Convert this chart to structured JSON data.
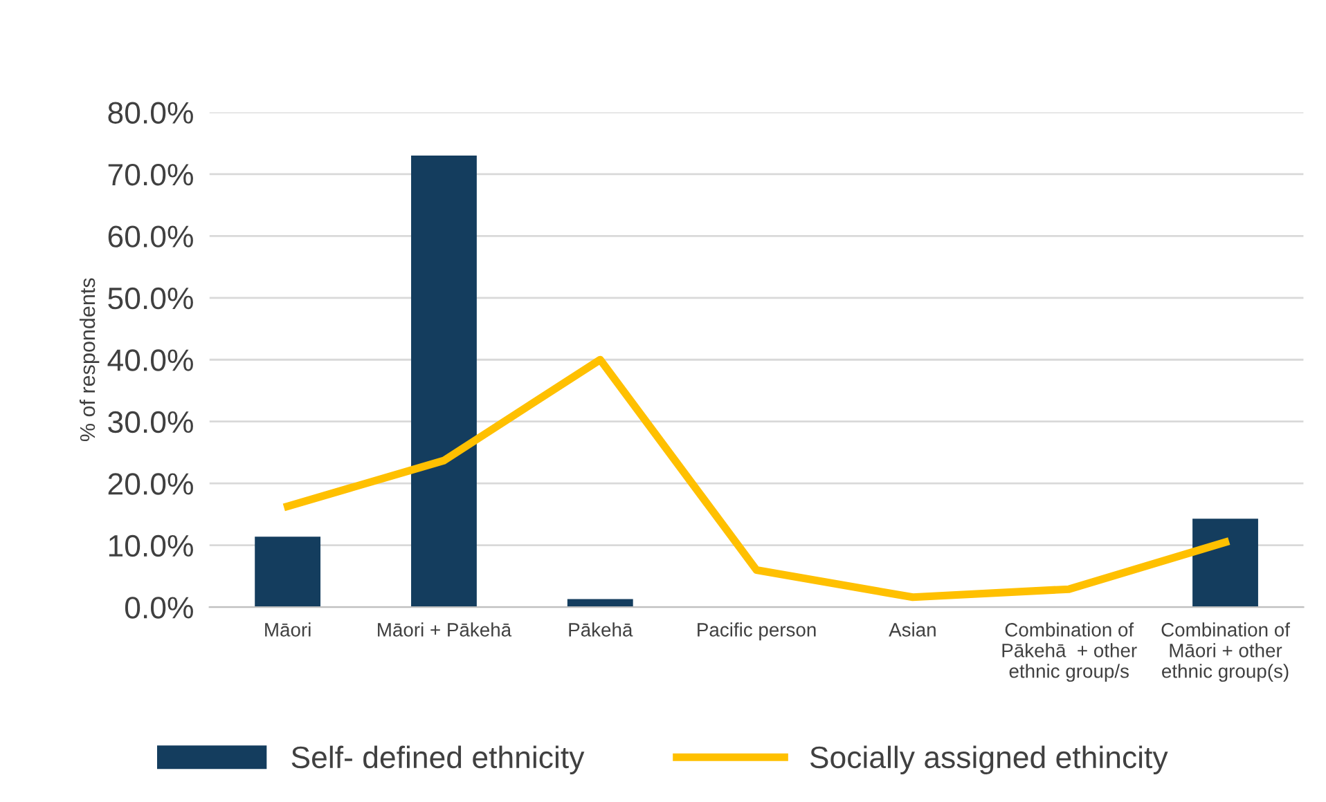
{
  "chart_data": {
    "type": "bar",
    "ylabel": "% of respondents",
    "categories": [
      "Māori",
      "Māori + Pākehā",
      "Pākehā",
      "Pacific person",
      "Asian",
      "Combination of\nPākehā  + other\nethnic group/s",
      "Combination of\nMāori + other\nethnic group(s)"
    ],
    "series": [
      {
        "name": "Self- defined ethnicity",
        "color": "#143d5e",
        "values": [
          11.4,
          73.0,
          1.3,
          0,
          0,
          0,
          14.3
        ]
      },
      {
        "name": "Socially assigned ethincity",
        "type": "line",
        "color": "#ffc000",
        "values": [
          16.3,
          23.7,
          40.0,
          6.0,
          1.6,
          2.9,
          10.5
        ]
      }
    ],
    "ylim": [
      0,
      80
    ],
    "yticks": [
      {
        "value": 0,
        "label": "0.0%"
      },
      {
        "value": 10,
        "label": "10.0%"
      },
      {
        "value": 20,
        "label": "20.0%"
      },
      {
        "value": 30,
        "label": "30.0%"
      },
      {
        "value": 40,
        "label": "40.0%"
      },
      {
        "value": 50,
        "label": "50.0%"
      },
      {
        "value": 60,
        "label": "60.0%"
      },
      {
        "value": 70,
        "label": "70.0%"
      },
      {
        "value": 80,
        "label": "80.0%"
      }
    ],
    "grid": "y",
    "legend": "bottom",
    "marker": "none"
  }
}
